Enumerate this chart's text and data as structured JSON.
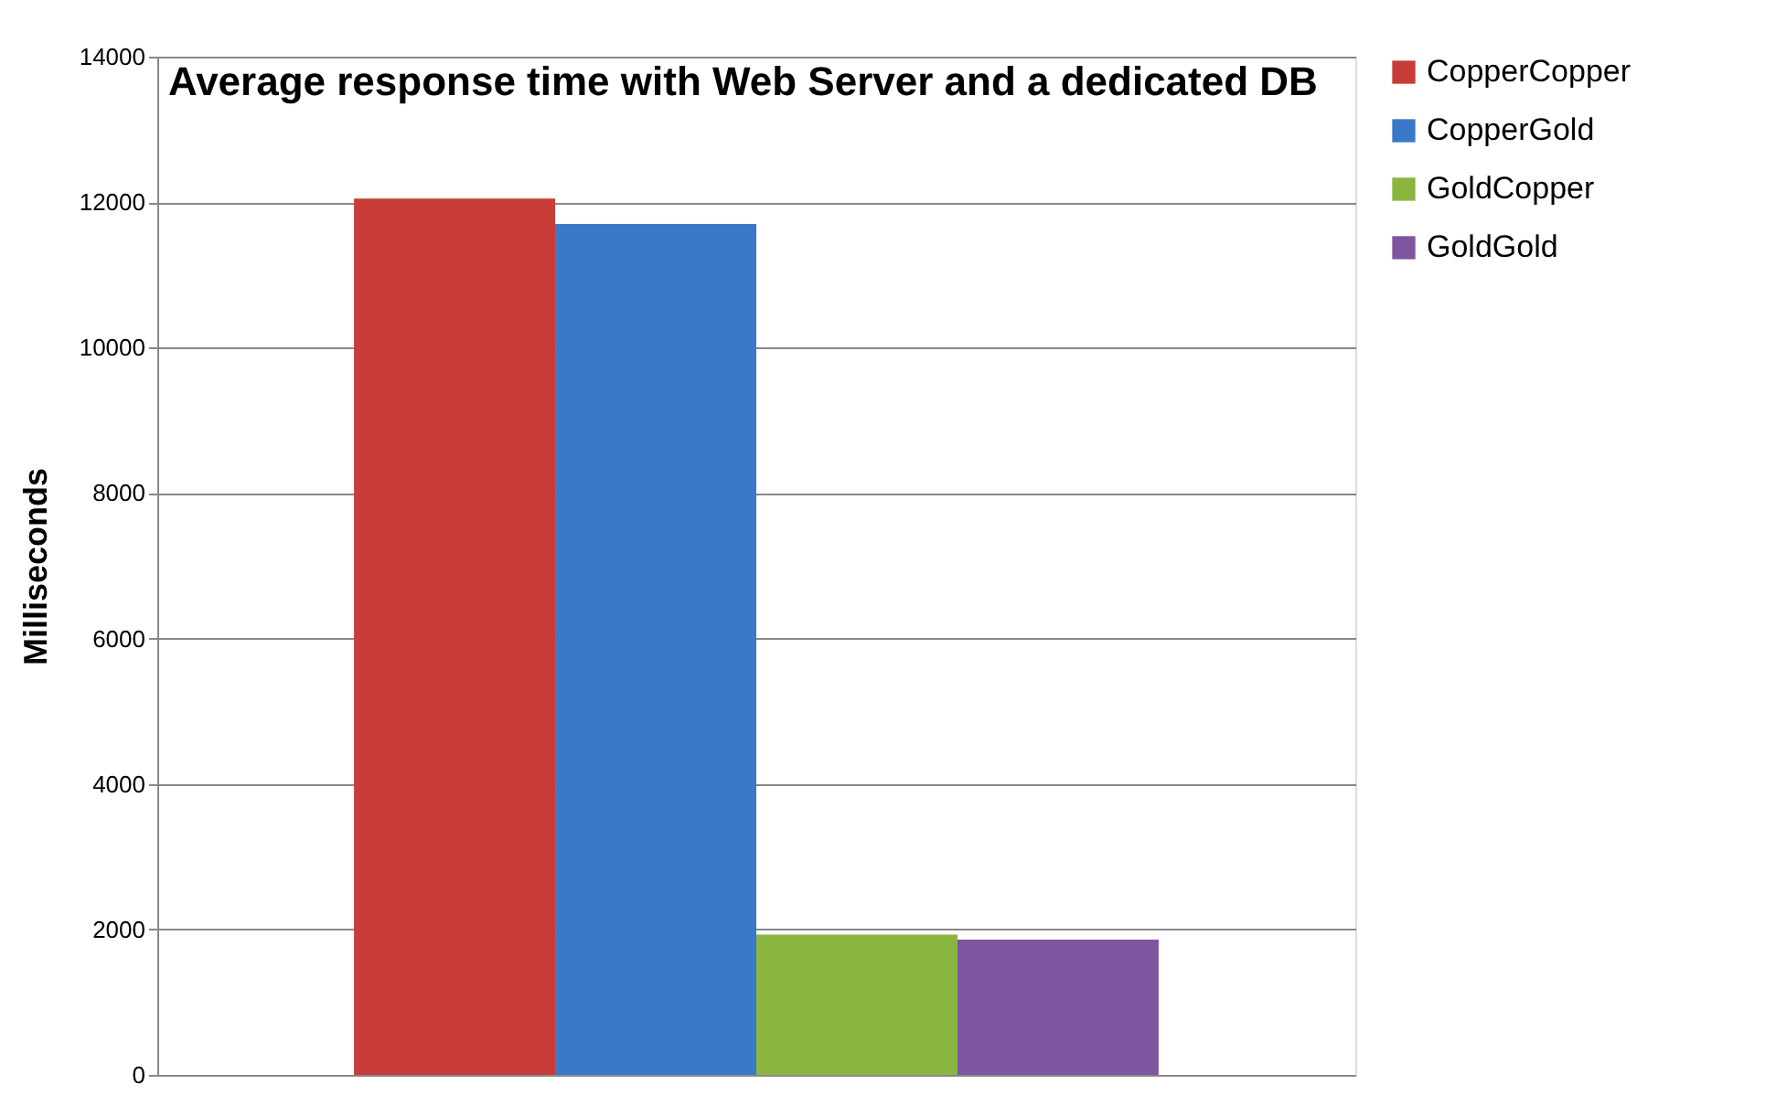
{
  "chart_data": {
    "type": "bar",
    "title": "Average response time with Web Server and a dedicated DB",
    "ylabel": "Milliseconds",
    "categories": [
      null
    ],
    "series": [
      {
        "name": "CopperCopper",
        "color": "#c83c37",
        "values": [
          12050
        ]
      },
      {
        "name": "CopperGold",
        "color": "#3a78c8",
        "values": [
          11700
        ]
      },
      {
        "name": "GoldCopper",
        "color": "#8ab53e",
        "values": [
          1930
        ]
      },
      {
        "name": "GoldGold",
        "color": "#7e55a0",
        "values": [
          1860
        ]
      }
    ],
    "ylim": [
      0,
      14000
    ],
    "yticks": [
      0,
      2000,
      4000,
      6000,
      8000,
      10000,
      12000,
      14000
    ],
    "grid": "y",
    "legend": "right"
  }
}
